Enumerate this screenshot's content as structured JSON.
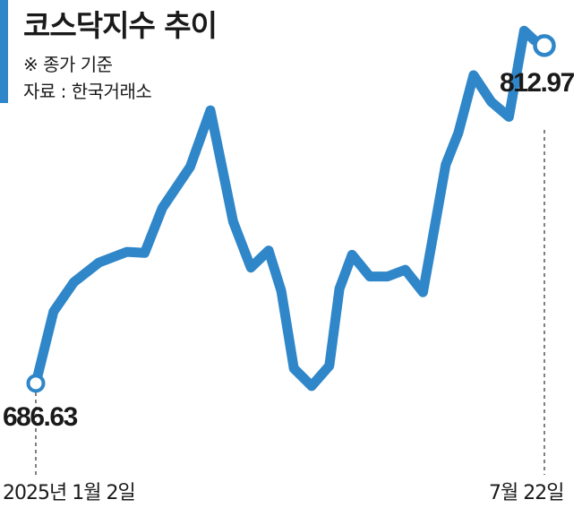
{
  "title": "코스닥지수 추이",
  "note": "※ 종가 기준",
  "source": "자료 : 한국거래소",
  "colors": {
    "line": "#2f86c8",
    "accent": "#2f86c8",
    "text": "#1a1a1a",
    "guide": "#555555"
  },
  "chart_data": {
    "type": "line",
    "title": "코스닥지수 추이",
    "xlabel": "",
    "ylabel": "",
    "grid": false,
    "x_range": [
      "2025-01-02",
      "2025-07-22"
    ],
    "ylim": [
      640,
      830
    ],
    "x": [
      "2025-01-02",
      "2025-01-09",
      "2025-01-17",
      "2025-01-27",
      "2025-02-07",
      "2025-02-14",
      "2025-02-21",
      "2025-03-04",
      "2025-03-12",
      "2025-03-21",
      "2025-03-28",
      "2025-04-04",
      "2025-04-09",
      "2025-04-14",
      "2025-04-21",
      "2025-04-28",
      "2025-05-02",
      "2025-05-07",
      "2025-05-14",
      "2025-05-21",
      "2025-05-28",
      "2025-06-04",
      "2025-06-09",
      "2025-06-13",
      "2025-06-18",
      "2025-06-24",
      "2025-07-01",
      "2025-07-08",
      "2025-07-14",
      "2025-07-18",
      "2025-07-22"
    ],
    "values": [
      686.63,
      713.5,
      724.4,
      731.8,
      735.8,
      735.4,
      752.2,
      767.6,
      788.7,
      747.1,
      729.9,
      736.3,
      721.2,
      692.2,
      685.6,
      693.2,
      722.0,
      734.7,
      726.6,
      726.6,
      729.1,
      720.7,
      747.1,
      768.4,
      780.3,
      801.9,
      791.9,
      786.3,
      818.5,
      815.0,
      812.97
    ],
    "start_label": {
      "date": "2025년 1월 2일",
      "value": "686.63"
    },
    "end_label": {
      "date": "7월 22일",
      "value": "812.97"
    }
  }
}
